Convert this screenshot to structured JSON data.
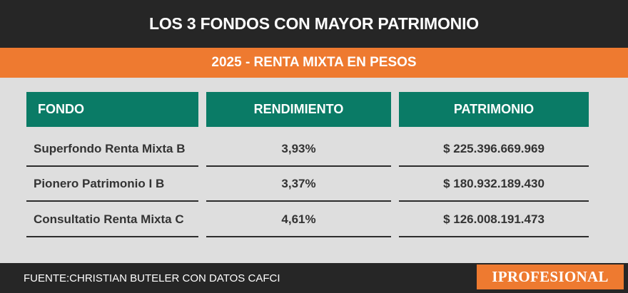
{
  "header": {
    "title": "LOS 3 FONDOS CON MAYOR PATRIMONIO",
    "subtitle": "2025 - RENTA MIXTA EN PESOS"
  },
  "table": {
    "columns": [
      "FONDO",
      "RENDIMIENTO",
      "PATRIMONIO"
    ],
    "rows": [
      {
        "fondo": "Superfondo Renta Mixta B",
        "rendimiento": "3,93%",
        "patrimonio": "$ 225.396.669.969"
      },
      {
        "fondo": "Pionero Patrimonio I B",
        "rendimiento": "3,37%",
        "patrimonio": "$ 180.932.189.430"
      },
      {
        "fondo": "Consultatio Renta Mixta C",
        "rendimiento": "4,61%",
        "patrimonio": "$ 126.008.191.473"
      }
    ]
  },
  "footer": {
    "source": "FUENTE:CHRISTIAN BUTELER CON DATOS CAFCI",
    "logo_text": "IPROFESIONAL"
  },
  "colors": {
    "dark": "#262626",
    "orange": "#ee7a30",
    "green": "#0a7b66",
    "background": "#dedede"
  }
}
